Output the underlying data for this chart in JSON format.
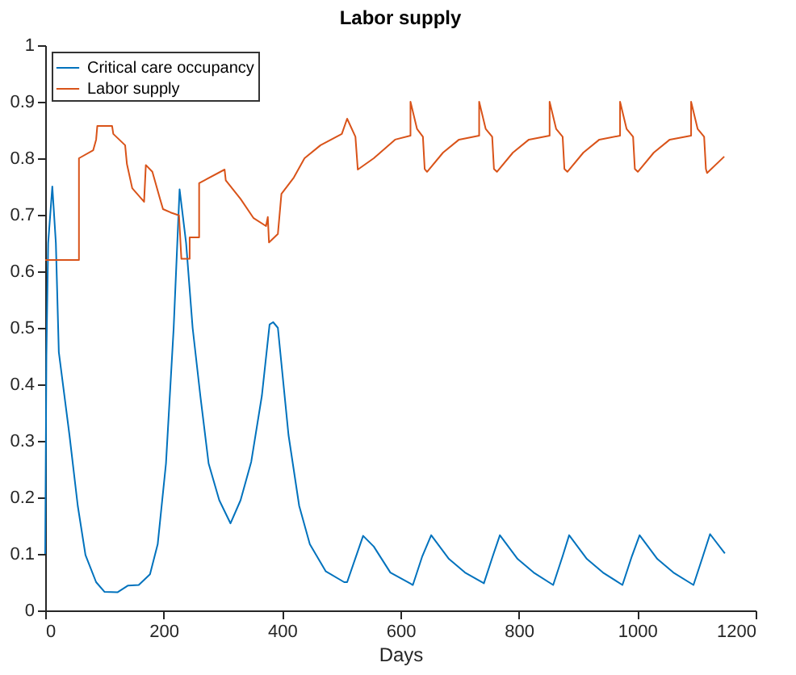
{
  "chart_data": {
    "type": "line",
    "title": "Labor supply",
    "xlabel": "Days",
    "xlim": [
      0,
      1200
    ],
    "xticks": [
      0,
      200,
      400,
      600,
      800,
      1000,
      1200
    ],
    "ylim": [
      0,
      1
    ],
    "yticks": [
      0,
      0.1,
      0.2,
      0.3,
      0.4,
      0.5,
      0.6,
      0.7,
      0.8,
      0.9,
      1
    ],
    "grid": false,
    "legend": "top left",
    "line_style": "solid",
    "marker": "none",
    "series": [
      {
        "name": "Critical care occupancy",
        "color": "#0072bd",
        "x": [
          0,
          2,
          5,
          12,
          18,
          23,
          41,
          55,
          68,
          86,
          100,
          122,
          140,
          158,
          177,
          190,
          204,
          217,
          227,
          238,
          249,
          262,
          276,
          294,
          313,
          330,
          348,
          366,
          379,
          385,
          393,
          411,
          429,
          447,
          474,
          505,
          510,
          537,
          555,
          583,
          621,
          637,
          652,
          682,
          709,
          741,
          756,
          768,
          798,
          825,
          858,
          874,
          885,
          915,
          942,
          975,
          991,
          1004,
          1034,
          1061,
          1095,
          1111,
          1123,
          1148
        ],
        "values": [
          0.1,
          0.45,
          0.65,
          0.75,
          0.65,
          0.457,
          0.31,
          0.185,
          0.098,
          0.05,
          0.033,
          0.032,
          0.044,
          0.045,
          0.064,
          0.117,
          0.26,
          0.5,
          0.745,
          0.65,
          0.5,
          0.38,
          0.26,
          0.195,
          0.154,
          0.195,
          0.263,
          0.38,
          0.506,
          0.51,
          0.5,
          0.31,
          0.185,
          0.117,
          0.069,
          0.05,
          0.05,
          0.132,
          0.113,
          0.067,
          0.045,
          0.096,
          0.133,
          0.091,
          0.067,
          0.048,
          0.096,
          0.133,
          0.091,
          0.067,
          0.045,
          0.096,
          0.133,
          0.091,
          0.067,
          0.045,
          0.096,
          0.133,
          0.091,
          0.067,
          0.045,
          0.096,
          0.135,
          0.101
        ]
      },
      {
        "name": "Labor supply",
        "color": "#d95319",
        "x": [
          0,
          57,
          57,
          81,
          86,
          88,
          113,
          115,
          135,
          138,
          147,
          167,
          170,
          181,
          194,
          199,
          212,
          226,
          230,
          244,
          244,
          260,
          260,
          303,
          305,
          330,
          352,
          373,
          376,
          378,
          393,
          399,
          420,
          438,
          465,
          501,
          510,
          524,
          528,
          555,
          591,
          617,
          617,
          628,
          638,
          641,
          645,
          672,
          699,
          733,
          733,
          744,
          755,
          758,
          763,
          790,
          817,
          852,
          852,
          863,
          874,
          877,
          882,
          909,
          936,
          971,
          971,
          982,
          993,
          996,
          1001,
          1028,
          1055,
          1091,
          1091,
          1102,
          1113,
          1116,
          1118,
          1147
        ],
        "values": [
          0.62,
          0.62,
          0.8,
          0.814,
          0.833,
          0.857,
          0.857,
          0.843,
          0.823,
          0.79,
          0.747,
          0.723,
          0.788,
          0.776,
          0.728,
          0.71,
          0.704,
          0.699,
          0.622,
          0.622,
          0.66,
          0.66,
          0.756,
          0.78,
          0.761,
          0.728,
          0.694,
          0.68,
          0.696,
          0.651,
          0.666,
          0.737,
          0.766,
          0.8,
          0.823,
          0.843,
          0.87,
          0.838,
          0.78,
          0.8,
          0.833,
          0.84,
          0.9,
          0.852,
          0.838,
          0.781,
          0.776,
          0.81,
          0.833,
          0.84,
          0.9,
          0.852,
          0.838,
          0.781,
          0.776,
          0.81,
          0.833,
          0.84,
          0.9,
          0.852,
          0.838,
          0.781,
          0.776,
          0.81,
          0.833,
          0.84,
          0.9,
          0.852,
          0.838,
          0.781,
          0.776,
          0.81,
          0.833,
          0.84,
          0.9,
          0.852,
          0.838,
          0.781,
          0.774,
          0.803
        ]
      }
    ]
  }
}
